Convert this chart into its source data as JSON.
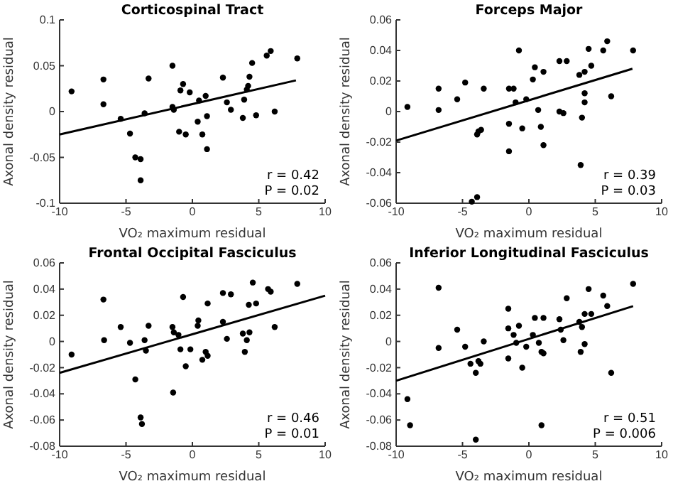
{
  "chart_data": [
    {
      "type": "scatter",
      "title": "Corticospinal Tract",
      "xlabel": "VO₂ maximum residual",
      "ylabel": "Axonal density residual",
      "xlim": [
        -10,
        10
      ],
      "xticks": [
        -10,
        -5,
        0,
        5,
        10
      ],
      "ylim": [
        -0.1,
        0.1
      ],
      "yticks": [
        -0.1,
        -0.05,
        0,
        0.05,
        0.1
      ],
      "marker": "circle",
      "grid": false,
      "annotations": [
        "r = 0.42",
        "P = 0.02"
      ],
      "series": [
        {
          "color": "#000000",
          "x": [
            -9.1,
            -6.7,
            -6.7,
            -5.4,
            -4.7,
            -4.3,
            -3.9,
            -3.9,
            -3.6,
            -3.3,
            -1.5,
            -1.5,
            -1.4,
            -1.0,
            -0.9,
            -0.7,
            -0.5,
            -0.2,
            0.4,
            0.5,
            0.75,
            1.0,
            1.1,
            1.1,
            2.3,
            2.6,
            2.9,
            3.8,
            3.9,
            4.1,
            4.2,
            4.3,
            4.5,
            4.8,
            5.6,
            5.9,
            6.2,
            7.9
          ],
          "values": [
            0.022,
            0.035,
            0.008,
            -0.008,
            -0.024,
            -0.05,
            -0.052,
            -0.075,
            -0.002,
            0.036,
            0.05,
            0.005,
            0.002,
            -0.022,
            0.023,
            0.03,
            -0.025,
            0.021,
            -0.011,
            0.012,
            -0.025,
            0.017,
            -0.005,
            -0.041,
            0.037,
            0.01,
            0.002,
            -0.007,
            0.013,
            0.024,
            0.028,
            0.038,
            0.053,
            -0.004,
            0.061,
            0.066,
            0.0,
            0.058
          ]
        },
        {
          "type": "line",
          "marker": "none",
          "color": "#000000",
          "x": [
            -10,
            7.8
          ],
          "values": [
            -0.025,
            0.034
          ]
        }
      ]
    },
    {
      "type": "scatter",
      "title": "Forceps Major",
      "xlabel": "VO₂ maximum residual",
      "ylabel": "Axonal density residual",
      "xlim": [
        -10,
        10
      ],
      "xticks": [
        -10,
        -5,
        0,
        5,
        10
      ],
      "ylim": [
        -0.06,
        0.06
      ],
      "yticks": [
        -0.06,
        -0.04,
        -0.02,
        0,
        0.02,
        0.04,
        0.06
      ],
      "marker": "circle",
      "grid": false,
      "annotations": [
        "r = 0.39",
        "P = 0.03"
      ],
      "series": [
        {
          "color": "#000000",
          "x": [
            -9.15,
            -6.8,
            -6.8,
            -5.4,
            -4.8,
            -4.3,
            -3.9,
            -3.9,
            -3.8,
            -3.6,
            -3.4,
            -1.5,
            -1.5,
            -1.5,
            -1.15,
            -1.0,
            -0.75,
            -0.5,
            -0.2,
            0.3,
            0.45,
            0.7,
            0.9,
            1.1,
            1.1,
            2.3,
            2.3,
            2.6,
            2.85,
            3.8,
            3.9,
            4.0,
            4.2,
            4.2,
            4.2,
            4.5,
            4.7,
            5.6,
            5.9,
            6.2,
            7.85
          ],
          "values": [
            0.003,
            0.015,
            0.001,
            0.008,
            0.019,
            -0.059,
            -0.056,
            -0.015,
            -0.013,
            -0.012,
            0.015,
            0.015,
            -0.008,
            -0.026,
            0.015,
            0.006,
            0.04,
            -0.011,
            0.008,
            0.021,
            0.029,
            0.001,
            -0.01,
            0.026,
            -0.022,
            0.033,
            0.0,
            -0.001,
            0.033,
            0.024,
            -0.035,
            -0.004,
            0.026,
            0.012,
            0.006,
            0.041,
            0.03,
            0.04,
            0.046,
            0.01,
            0.04
          ]
        },
        {
          "type": "line",
          "marker": "none",
          "color": "#000000",
          "x": [
            -10,
            7.8
          ],
          "values": [
            -0.019,
            0.028
          ]
        }
      ]
    },
    {
      "type": "scatter",
      "title": "Frontal Occipital Fasciculus",
      "xlabel": "VO₂ maximum residual",
      "ylabel": "Axonal density residual",
      "xlim": [
        -10,
        10
      ],
      "xticks": [
        -10,
        -5,
        0,
        5,
        10
      ],
      "ylim": [
        -0.08,
        0.06
      ],
      "yticks": [
        -0.08,
        -0.06,
        -0.04,
        -0.02,
        0,
        0.02,
        0.04,
        0.06
      ],
      "marker": "circle",
      "grid": false,
      "annotations": [
        "r = 0.46",
        "P = 0.01"
      ],
      "series": [
        {
          "color": "#000000",
          "x": [
            -9.1,
            -6.7,
            -6.65,
            -5.4,
            -4.7,
            -4.3,
            -3.9,
            -3.8,
            -3.6,
            -3.5,
            -3.3,
            -1.5,
            -1.45,
            -1.4,
            -1.05,
            -0.9,
            -0.7,
            -0.5,
            -0.15,
            0.4,
            0.45,
            0.75,
            1.0,
            1.15,
            1.15,
            2.3,
            2.3,
            2.6,
            2.9,
            3.8,
            3.95,
            4.1,
            4.25,
            4.3,
            4.55,
            4.8,
            5.7,
            5.9,
            6.2,
            7.9
          ],
          "values": [
            -0.01,
            0.032,
            0.001,
            0.011,
            -0.001,
            -0.029,
            -0.058,
            -0.063,
            0.001,
            -0.007,
            0.012,
            0.011,
            -0.039,
            0.007,
            0.005,
            -0.006,
            0.034,
            -0.019,
            -0.006,
            0.012,
            0.016,
            -0.014,
            -0.008,
            -0.011,
            0.029,
            0.015,
            0.037,
            0.002,
            0.036,
            0.006,
            -0.008,
            0.001,
            0.028,
            0.007,
            0.045,
            0.029,
            0.04,
            0.038,
            0.011,
            0.044
          ]
        },
        {
          "type": "line",
          "marker": "none",
          "color": "#000000",
          "x": [
            -10,
            10
          ],
          "values": [
            -0.024,
            0.035
          ]
        }
      ]
    },
    {
      "type": "scatter",
      "title": "Inferior Longitudinal Fasciculus",
      "xlabel": "VO₂ maximum residual",
      "ylabel": "Axonal density residual",
      "xlim": [
        -10,
        10
      ],
      "xticks": [
        -10,
        -5,
        0,
        5,
        10
      ],
      "ylim": [
        -0.08,
        0.06
      ],
      "yticks": [
        -0.08,
        -0.06,
        -0.04,
        -0.02,
        0,
        0.02,
        0.04,
        0.06
      ],
      "marker": "circle",
      "grid": false,
      "annotations": [
        "r = 0.51",
        "P = 0.006"
      ],
      "series": [
        {
          "color": "#000000",
          "x": [
            -9.15,
            -8.95,
            -6.8,
            -6.8,
            -5.4,
            -4.8,
            -4.4,
            -4.0,
            -4.0,
            -3.8,
            -3.65,
            -3.4,
            -1.55,
            -1.55,
            -1.55,
            -1.15,
            -0.95,
            -0.75,
            -0.5,
            -0.2,
            0.3,
            0.45,
            0.75,
            0.95,
            1.1,
            1.1,
            0.95,
            2.3,
            2.4,
            2.6,
            2.85,
            3.8,
            3.9,
            4.0,
            4.2,
            4.2,
            4.5,
            4.7,
            5.6,
            5.9,
            6.2,
            7.85
          ],
          "values": [
            -0.044,
            -0.064,
            0.041,
            -0.005,
            0.009,
            -0.004,
            -0.017,
            -0.024,
            -0.075,
            -0.015,
            -0.017,
            0.0,
            0.025,
            0.01,
            -0.013,
            0.005,
            -0.001,
            0.012,
            -0.02,
            -0.004,
            0.005,
            0.018,
            -0.001,
            -0.008,
            -0.009,
            0.018,
            -0.064,
            0.017,
            0.009,
            0.001,
            0.033,
            0.015,
            -0.008,
            0.011,
            0.021,
            -0.002,
            0.04,
            0.021,
            0.035,
            0.027,
            -0.024,
            0.044
          ]
        },
        {
          "type": "line",
          "marker": "none",
          "color": "#000000",
          "x": [
            -10,
            7.85
          ],
          "values": [
            -0.03,
            0.027
          ]
        }
      ]
    }
  ]
}
